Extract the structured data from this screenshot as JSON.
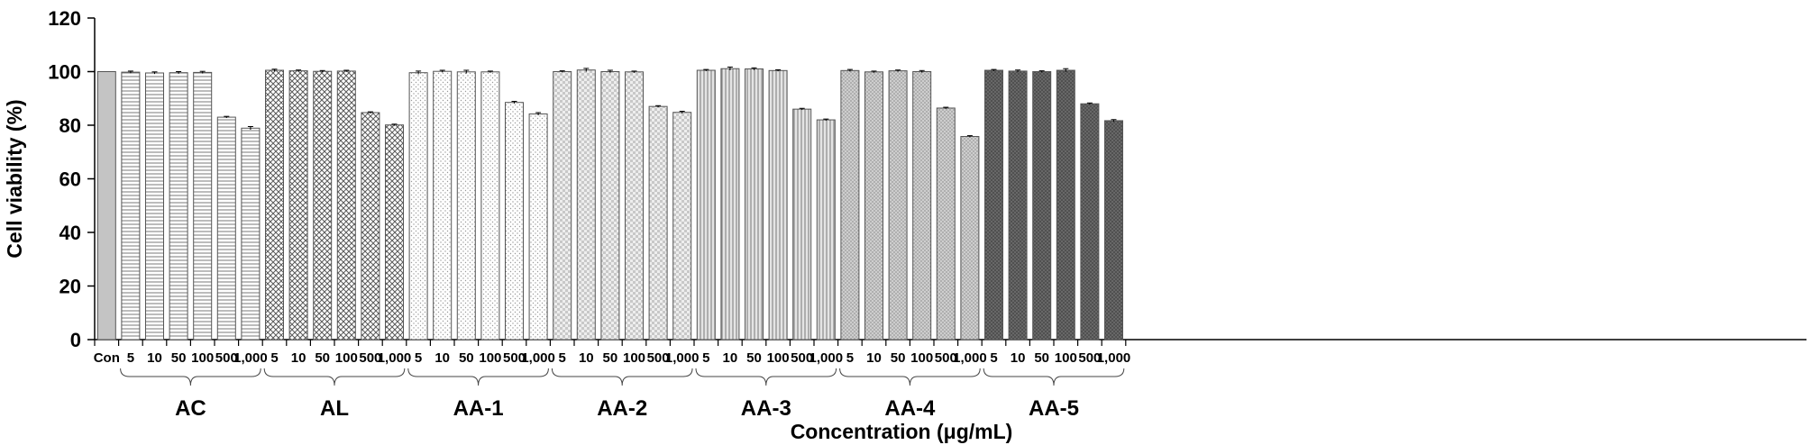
{
  "chart_data": {
    "type": "bar",
    "xlabel": "Concentration (μg/mL)",
    "ylabel": "Cell viability (%)",
    "ylim": [
      0,
      120
    ],
    "yticks": [
      0,
      20,
      40,
      60,
      80,
      100,
      120
    ],
    "grid": false,
    "control": {
      "label": "Con",
      "value": 100,
      "error": 0,
      "color": "#c4c4c4"
    },
    "concentrations": [
      "5",
      "10",
      "50",
      "100",
      "500",
      "1,000"
    ],
    "groups": [
      {
        "name": "AC",
        "pattern": "hlines",
        "values": [
          99.8,
          99.5,
          99.6,
          99.7,
          83.0,
          78.9
        ],
        "errors": [
          0.4,
          0.4,
          0.4,
          0.4,
          0.3,
          0.6
        ]
      },
      {
        "name": "AL",
        "pattern": "crosshatch",
        "values": [
          100.5,
          100.3,
          100.1,
          100.2,
          84.7,
          80.1
        ],
        "errors": [
          0.4,
          0.3,
          0.3,
          0.3,
          0.3,
          0.3
        ]
      },
      {
        "name": "AA-1",
        "pattern": "dots",
        "values": [
          99.6,
          100.1,
          99.9,
          99.9,
          88.5,
          84.2
        ],
        "errors": [
          0.6,
          0.4,
          0.6,
          0.3,
          0.4,
          0.5
        ]
      },
      {
        "name": "AA-2",
        "pattern": "checker",
        "values": [
          100.0,
          100.6,
          100.0,
          99.9,
          87.0,
          84.8
        ],
        "errors": [
          0.3,
          0.6,
          0.5,
          0.3,
          0.3,
          0.4
        ]
      },
      {
        "name": "AA-3",
        "pattern": "vlines",
        "values": [
          100.5,
          101.1,
          101.0,
          100.4,
          86.0,
          82.0
        ],
        "errors": [
          0.3,
          0.6,
          0.4,
          0.3,
          0.3,
          0.3
        ]
      },
      {
        "name": "AA-4",
        "pattern": "fine",
        "values": [
          100.4,
          99.9,
          100.3,
          100.0,
          86.4,
          75.8
        ],
        "errors": [
          0.4,
          0.3,
          0.3,
          0.4,
          0.3,
          0.3
        ]
      },
      {
        "name": "AA-5",
        "pattern": "dense",
        "values": [
          100.5,
          100.2,
          100.0,
          100.5,
          88.0,
          81.7
        ],
        "errors": [
          0.3,
          0.4,
          0.3,
          0.6,
          0.3,
          0.4
        ]
      }
    ]
  }
}
